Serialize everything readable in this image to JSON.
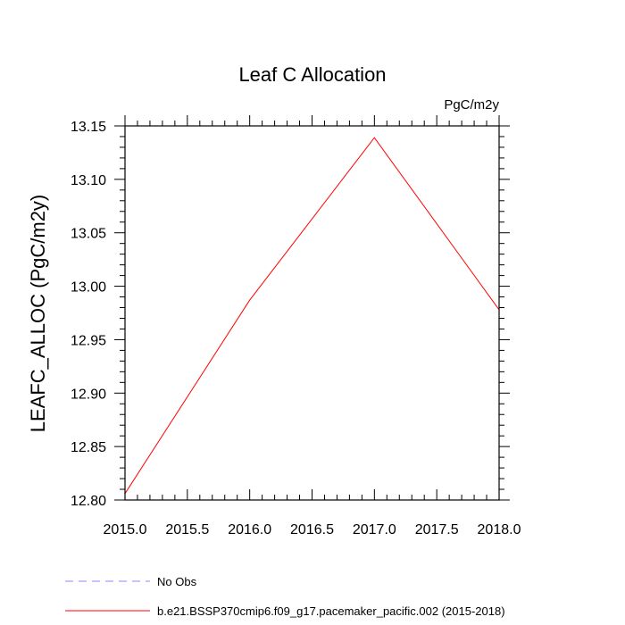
{
  "chart_data": {
    "type": "line",
    "title": "Leaf C Allocation",
    "units": "PgC/m2y",
    "ylabel": "LEAFC_ALLOC  (PgC/m2y)",
    "xlabel": "",
    "xlim": [
      2015.0,
      2018.0
    ],
    "ylim": [
      12.8,
      13.15
    ],
    "x_ticks": [
      2015.0,
      2015.5,
      2016.0,
      2016.5,
      2017.0,
      2017.5,
      2018.0
    ],
    "x_tick_labels": [
      "2015.0",
      "2015.5",
      "2016.0",
      "2016.5",
      "2017.0",
      "2017.5",
      "2018.0"
    ],
    "y_ticks": [
      12.8,
      12.85,
      12.9,
      12.95,
      13.0,
      13.05,
      13.1,
      13.15
    ],
    "y_tick_labels": [
      "12.80",
      "12.85",
      "12.90",
      "12.95",
      "13.00",
      "13.05",
      "13.10",
      "13.15"
    ],
    "grid": false,
    "legend_position": "bottom",
    "series": [
      {
        "name": "b.e21.BSSP370cmip6.f09_g17.pacemaker_pacific.002 (2015-2018)",
        "color": "#ff0000",
        "line_style": "solid",
        "x": [
          2015.0,
          2016.0,
          2017.0,
          2018.0
        ],
        "y": [
          12.806,
          12.987,
          13.139,
          12.978
        ]
      }
    ],
    "legend": [
      {
        "label": "No Obs",
        "color": "#8888ff",
        "line_style": "dashed"
      },
      {
        "label": "b.e21.BSSP370cmip6.f09_g17.pacemaker_pacific.002 (2015-2018)",
        "color": "#ff0000",
        "line_style": "solid"
      }
    ]
  }
}
